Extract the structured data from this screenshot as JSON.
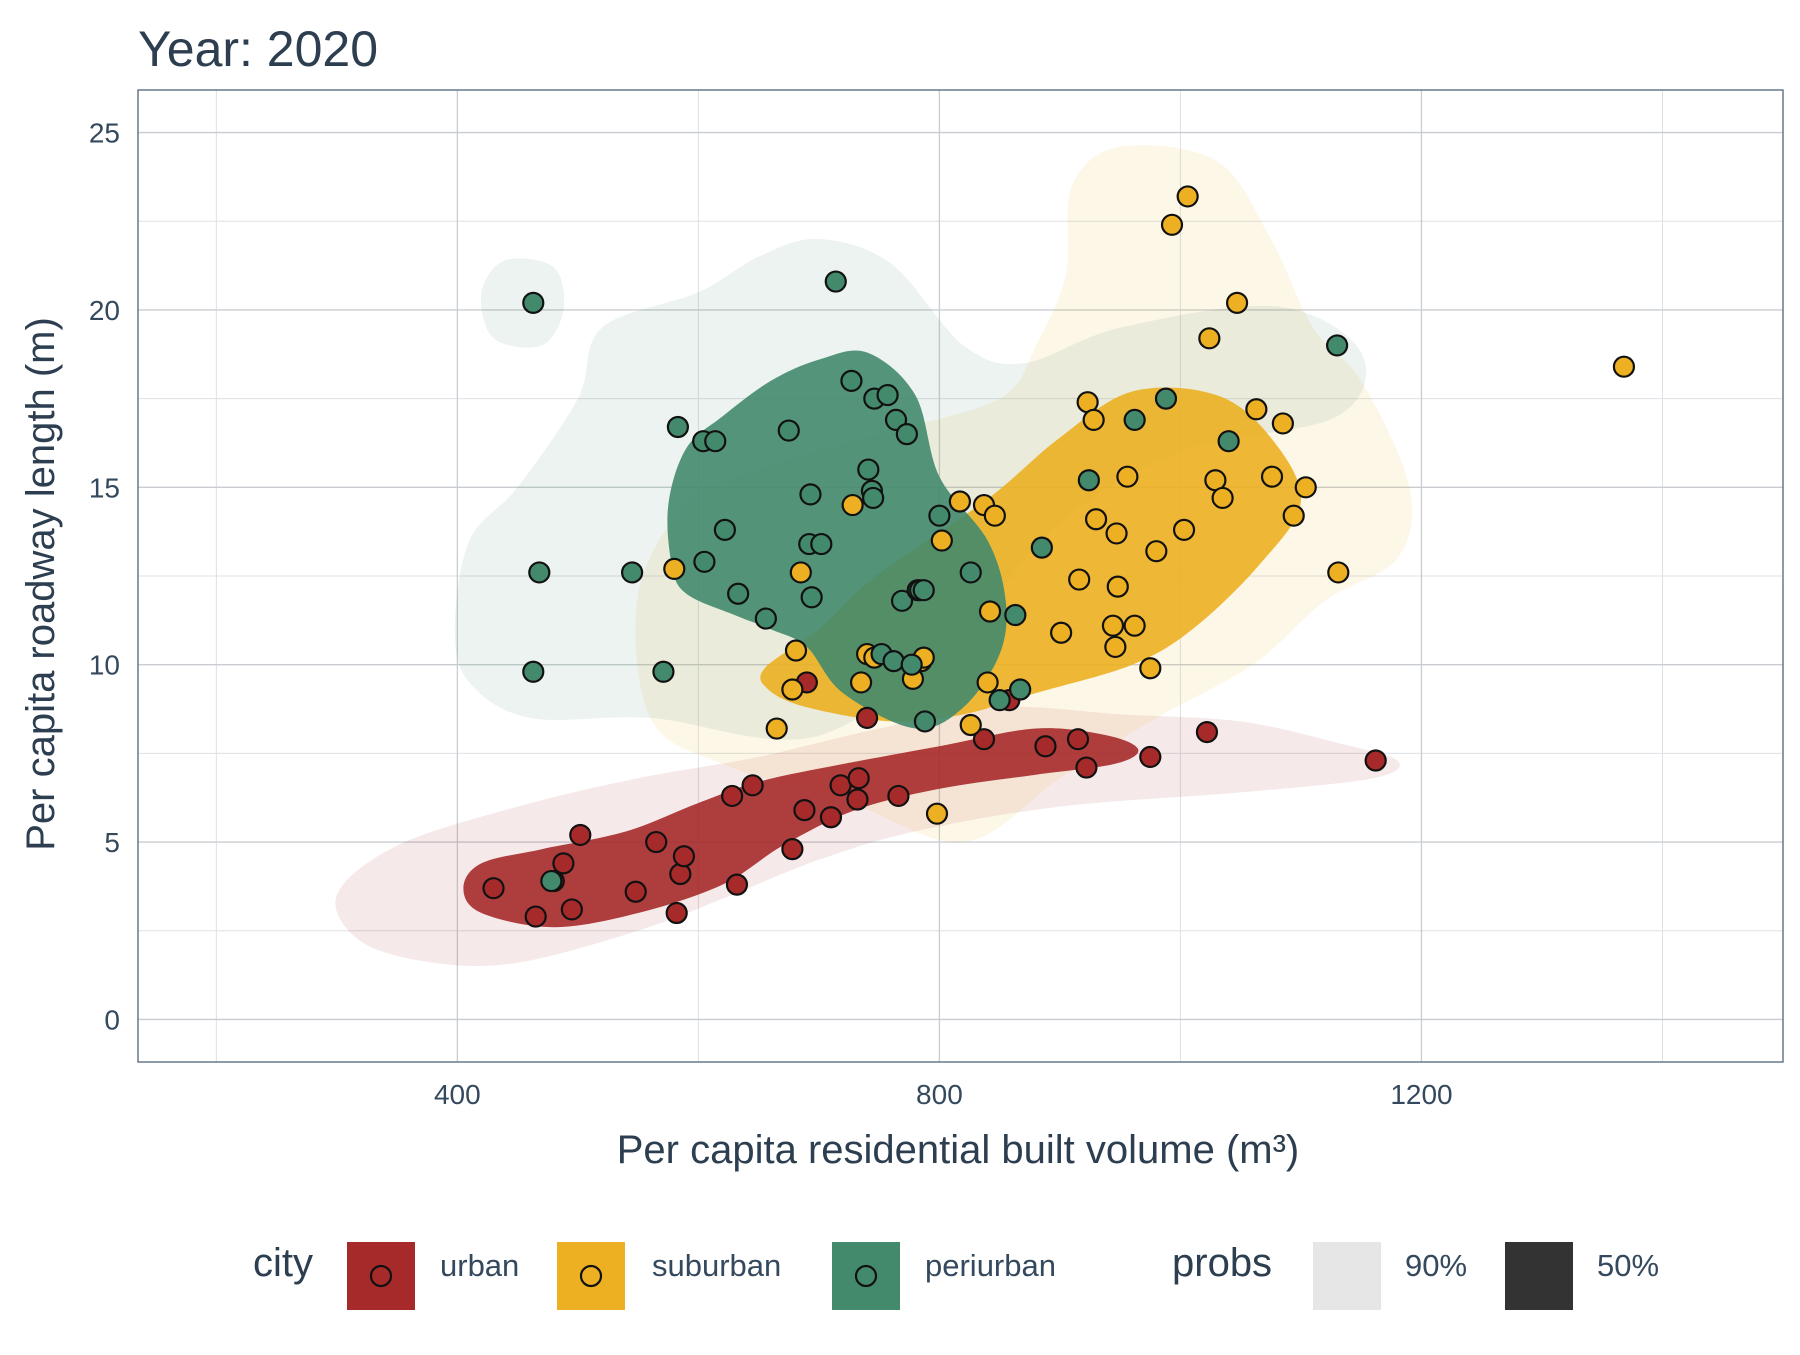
{
  "chart_data": {
    "type": "scatter",
    "title": "Year: 2020",
    "xlabel": "Per capita residential built volume (m³)",
    "ylabel": "Per capita roadway length (m)",
    "xlim": [
      135,
      1500
    ],
    "ylim": [
      -1.2,
      26.2
    ],
    "x_ticks": [
      400,
      800,
      1200
    ],
    "y_ticks": [
      0,
      5,
      10,
      15,
      20,
      25
    ],
    "x_tick_labels": [
      "400",
      "800",
      "1200"
    ],
    "y_tick_labels": [
      "0",
      "5",
      "10",
      "15",
      "20",
      "25"
    ],
    "grid": true,
    "legend_position": "bottom",
    "legend": {
      "color_title": "city",
      "probs_title": "probs",
      "probs": [
        {
          "label": "90%",
          "color": "#e6e6e6"
        },
        {
          "label": "50%",
          "color": "#333333"
        }
      ]
    },
    "series": [
      {
        "name": "urban",
        "color": "#a62a2a",
        "points": [
          [
            430,
            3.7
          ],
          [
            465,
            2.9
          ],
          [
            480,
            3.9
          ],
          [
            488,
            4.4
          ],
          [
            495,
            3.1
          ],
          [
            502,
            5.2
          ],
          [
            548,
            3.6
          ],
          [
            565,
            5.0
          ],
          [
            582,
            3.0
          ],
          [
            585,
            4.1
          ],
          [
            588,
            4.6
          ],
          [
            628,
            6.3
          ],
          [
            632,
            3.8
          ],
          [
            645,
            6.6
          ],
          [
            678,
            4.8
          ],
          [
            688,
            5.9
          ],
          [
            690,
            9.5
          ],
          [
            710,
            5.7
          ],
          [
            718,
            6.6
          ],
          [
            732,
            6.2
          ],
          [
            733,
            6.8
          ],
          [
            740,
            8.5
          ],
          [
            766,
            6.3
          ],
          [
            837,
            7.9
          ],
          [
            858,
            9.0
          ],
          [
            888,
            7.7
          ],
          [
            915,
            7.9
          ],
          [
            922,
            7.1
          ],
          [
            975,
            7.4
          ],
          [
            1022,
            8.1
          ],
          [
            1162,
            7.3
          ]
        ],
        "density_90": [
          [
            300,
            3.5
          ],
          [
            350,
            4.9
          ],
          [
            450,
            6.0
          ],
          [
            550,
            6.8
          ],
          [
            650,
            7.4
          ],
          [
            750,
            8.2
          ],
          [
            850,
            8.8
          ],
          [
            950,
            8.6
          ],
          [
            1050,
            8.4
          ],
          [
            1130,
            7.8
          ],
          [
            1180,
            7.3
          ],
          [
            1160,
            6.8
          ],
          [
            1050,
            6.4
          ],
          [
            900,
            6.0
          ],
          [
            780,
            5.3
          ],
          [
            700,
            4.5
          ],
          [
            620,
            3.4
          ],
          [
            550,
            2.5
          ],
          [
            450,
            1.6
          ],
          [
            380,
            1.6
          ],
          [
            320,
            2.2
          ]
        ],
        "density_50": [
          [
            405,
            3.7
          ],
          [
            420,
            4.4
          ],
          [
            470,
            4.8
          ],
          [
            540,
            5.3
          ],
          [
            600,
            6.1
          ],
          [
            650,
            6.7
          ],
          [
            720,
            7.2
          ],
          [
            800,
            7.7
          ],
          [
            880,
            8.2
          ],
          [
            940,
            8.0
          ],
          [
            965,
            7.6
          ],
          [
            945,
            7.2
          ],
          [
            880,
            6.9
          ],
          [
            800,
            6.5
          ],
          [
            730,
            5.9
          ],
          [
            670,
            4.9
          ],
          [
            620,
            3.8
          ],
          [
            550,
            3.0
          ],
          [
            480,
            2.6
          ],
          [
            420,
            3.0
          ]
        ]
      },
      {
        "name": "suburban",
        "color": "#ecb022",
        "points": [
          [
            580,
            12.7
          ],
          [
            665,
            8.2
          ],
          [
            678,
            9.3
          ],
          [
            681,
            10.4
          ],
          [
            685,
            12.6
          ],
          [
            728,
            14.5
          ],
          [
            735,
            9.5
          ],
          [
            740,
            10.3
          ],
          [
            746,
            10.2
          ],
          [
            778,
            9.6
          ],
          [
            785,
            10.1
          ],
          [
            787,
            10.2
          ],
          [
            798,
            5.8
          ],
          [
            802,
            13.5
          ],
          [
            817,
            14.6
          ],
          [
            826,
            8.3
          ],
          [
            837,
            14.5
          ],
          [
            840,
            9.5
          ],
          [
            842,
            11.5
          ],
          [
            846,
            14.2
          ],
          [
            901,
            10.9
          ],
          [
            916,
            12.4
          ],
          [
            923,
            17.4
          ],
          [
            928,
            16.9
          ],
          [
            930,
            14.1
          ],
          [
            944,
            11.1
          ],
          [
            946,
            10.5
          ],
          [
            947,
            13.7
          ],
          [
            948,
            12.2
          ],
          [
            956,
            15.3
          ],
          [
            962,
            11.1
          ],
          [
            975,
            9.9
          ],
          [
            980,
            13.2
          ],
          [
            993,
            22.4
          ],
          [
            1003,
            13.8
          ],
          [
            1006,
            23.2
          ],
          [
            1024,
            19.2
          ],
          [
            1029,
            15.2
          ],
          [
            1035,
            14.7
          ],
          [
            1047,
            20.2
          ],
          [
            1063,
            17.2
          ],
          [
            1076,
            15.3
          ],
          [
            1085,
            16.8
          ],
          [
            1094,
            14.2
          ],
          [
            1104,
            15.0
          ],
          [
            1131,
            12.6
          ],
          [
            1368,
            18.4
          ]
        ],
        "density_90": [
          [
            560,
            8.5
          ],
          [
            550,
            12.0
          ],
          [
            590,
            14.5
          ],
          [
            650,
            15.5
          ],
          [
            750,
            16.5
          ],
          [
            850,
            17.5
          ],
          [
            880,
            19.0
          ],
          [
            905,
            21.0
          ],
          [
            910,
            23.5
          ],
          [
            950,
            24.6
          ],
          [
            1030,
            24.2
          ],
          [
            1075,
            22.0
          ],
          [
            1110,
            19.5
          ],
          [
            1150,
            18.0
          ],
          [
            1190,
            15.0
          ],
          [
            1180,
            13.0
          ],
          [
            1120,
            11.8
          ],
          [
            1060,
            10.0
          ],
          [
            980,
            8.5
          ],
          [
            900,
            6.8
          ],
          [
            820,
            5.0
          ],
          [
            720,
            6.2
          ],
          [
            620,
            7.2
          ]
        ],
        "density_50": [
          [
            655,
            9.9
          ],
          [
            700,
            11.0
          ],
          [
            740,
            12.3
          ],
          [
            790,
            13.5
          ],
          [
            845,
            14.8
          ],
          [
            900,
            16.4
          ],
          [
            960,
            17.7
          ],
          [
            1030,
            17.6
          ],
          [
            1075,
            16.4
          ],
          [
            1100,
            14.6
          ],
          [
            1065,
            12.8
          ],
          [
            1010,
            11.0
          ],
          [
            960,
            10.0
          ],
          [
            880,
            9.2
          ],
          [
            820,
            8.6
          ],
          [
            760,
            8.4
          ],
          [
            690,
            8.8
          ],
          [
            658,
            9.3
          ]
        ]
      },
      {
        "name": "periurban",
        "color": "#438a6d",
        "points": [
          [
            463,
            20.2
          ],
          [
            463,
            9.8
          ],
          [
            468,
            12.6
          ],
          [
            478,
            3.9
          ],
          [
            545,
            12.6
          ],
          [
            571,
            9.8
          ],
          [
            583,
            16.7
          ],
          [
            604,
            16.3
          ],
          [
            605,
            12.9
          ],
          [
            614,
            16.3
          ],
          [
            622,
            13.8
          ],
          [
            633,
            12.0
          ],
          [
            656,
            11.3
          ],
          [
            675,
            16.6
          ],
          [
            692,
            13.4
          ],
          [
            693,
            14.8
          ],
          [
            694,
            11.9
          ],
          [
            702,
            13.4
          ],
          [
            714,
            20.8
          ],
          [
            727,
            18.0
          ],
          [
            741,
            15.5
          ],
          [
            744,
            14.9
          ],
          [
            745,
            14.7
          ],
          [
            746,
            17.5
          ],
          [
            752,
            10.3
          ],
          [
            757,
            17.6
          ],
          [
            762,
            10.1
          ],
          [
            764,
            16.9
          ],
          [
            769,
            11.8
          ],
          [
            773,
            16.5
          ],
          [
            777,
            10.0
          ],
          [
            782,
            12.1
          ],
          [
            784,
            12.1
          ],
          [
            787,
            12.1
          ],
          [
            788,
            8.4
          ],
          [
            800,
            14.2
          ],
          [
            826,
            12.6
          ],
          [
            850,
            9.0
          ],
          [
            863,
            11.4
          ],
          [
            867,
            9.3
          ],
          [
            885,
            13.3
          ],
          [
            924,
            15.2
          ],
          [
            962,
            16.9
          ],
          [
            988,
            17.5
          ],
          [
            1040,
            16.3
          ],
          [
            1130,
            19.0
          ]
        ],
        "density_90": [
          [
            398,
            11.0
          ],
          [
            410,
            13.5
          ],
          [
            450,
            15.0
          ],
          [
            500,
            17.5
          ],
          [
            520,
            19.5
          ],
          [
            600,
            20.5
          ],
          [
            650,
            21.5
          ],
          [
            700,
            22.0
          ],
          [
            760,
            21.3
          ],
          [
            820,
            19.0
          ],
          [
            870,
            18.5
          ],
          [
            950,
            19.5
          ],
          [
            1080,
            20.1
          ],
          [
            1150,
            18.8
          ],
          [
            1130,
            17.0
          ],
          [
            1000,
            16.0
          ],
          [
            900,
            14.0
          ],
          [
            820,
            11.0
          ],
          [
            700,
            8.0
          ],
          [
            560,
            8.5
          ],
          [
            460,
            8.5
          ],
          [
            410,
            9.5
          ]
        ],
        "density_90_isolated": [
          [
            420,
            20.5
          ],
          [
            440,
            21.4
          ],
          [
            480,
            21.2
          ],
          [
            488,
            20.0
          ],
          [
            470,
            19.0
          ],
          [
            430,
            19.2
          ]
        ],
        "density_50": [
          [
            575,
            14.5
          ],
          [
            590,
            16.1
          ],
          [
            620,
            17.0
          ],
          [
            660,
            18.0
          ],
          [
            700,
            18.6
          ],
          [
            740,
            18.8
          ],
          [
            780,
            17.6
          ],
          [
            800,
            15.3
          ],
          [
            840,
            13.5
          ],
          [
            855,
            11.8
          ],
          [
            850,
            10.3
          ],
          [
            820,
            8.8
          ],
          [
            780,
            8.2
          ],
          [
            720,
            9.2
          ],
          [
            690,
            10.5
          ],
          [
            660,
            11.0
          ],
          [
            630,
            11.4
          ],
          [
            590,
            12.0
          ],
          [
            578,
            12.8
          ]
        ]
      }
    ]
  }
}
